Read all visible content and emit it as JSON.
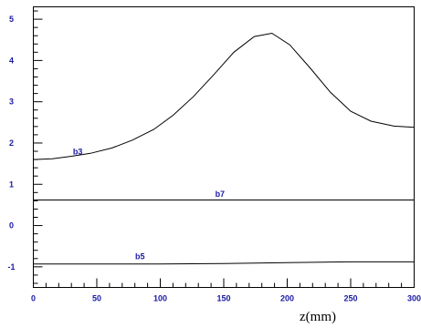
{
  "chart_data": {
    "type": "line",
    "title": "",
    "xlabel": "z(mm)",
    "ylabel": "",
    "xlim": [
      0,
      300
    ],
    "ylim": [
      -1.5,
      5.3
    ],
    "x_ticks": [
      0,
      50,
      100,
      150,
      200,
      250,
      300
    ],
    "y_ticks": [
      -1,
      0,
      1,
      2,
      3,
      4,
      5
    ],
    "x_minor_step": 10,
    "y_minor_step": 0.2,
    "grid": false,
    "legend": "none",
    "series": [
      {
        "name": "b3",
        "label_at": [
          35,
          1.72
        ],
        "x": [
          0,
          15,
          30,
          45,
          62,
          78,
          95,
          110,
          126,
          142,
          158,
          174,
          188,
          202,
          218,
          234,
          250,
          266,
          284,
          300
        ],
        "y": [
          1.6,
          1.62,
          1.68,
          1.75,
          1.88,
          2.07,
          2.33,
          2.67,
          3.12,
          3.65,
          4.2,
          4.58,
          4.66,
          4.38,
          3.82,
          3.23,
          2.77,
          2.53,
          2.41,
          2.38
        ]
      },
      {
        "name": "b7",
        "label_at": [
          147,
          0.7
        ],
        "x": [
          0,
          300
        ],
        "y": [
          0.62,
          0.62
        ]
      },
      {
        "name": "b5",
        "label_at": [
          84,
          -0.82
        ],
        "x": [
          0,
          50,
          100,
          150,
          200,
          250,
          300
        ],
        "y": [
          -0.93,
          -0.93,
          -0.93,
          -0.92,
          -0.9,
          -0.88,
          -0.88
        ]
      }
    ]
  }
}
